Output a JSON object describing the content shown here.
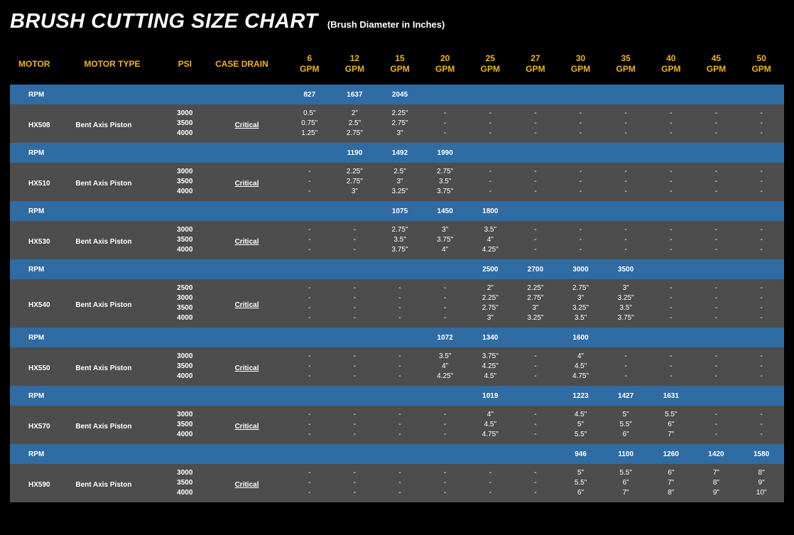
{
  "title": "BRUSH CUTTING SIZE CHART",
  "subtitle": "(Brush Diameter in Inches)",
  "columns": {
    "motor": "MOTOR",
    "motor_type": "MOTOR TYPE",
    "psi": "PSI",
    "case_drain": "CASE DRAIN",
    "gpm": [
      "6",
      "12",
      "15",
      "20",
      "25",
      "27",
      "30",
      "35",
      "40",
      "45",
      "50"
    ],
    "gpm_suffix": "GPM"
  },
  "rpm_label": "RPM",
  "colors": {
    "page_bg": "#000000",
    "header_text": "#f2b416",
    "rpm_row_bg": "#2f6ca4",
    "data_row_bg": "#4d4d4d",
    "text": "#ffffff"
  },
  "motors": [
    {
      "id": "HX508",
      "type": "Bent Axis Piston",
      "drain": "Critical",
      "rpm": [
        "827",
        "1637",
        "2045",
        "",
        "",
        "",
        "",
        "",
        "",
        "",
        ""
      ],
      "psi": [
        "3000",
        "3500",
        "4000"
      ],
      "data": [
        [
          "0.5\"",
          "2\"",
          "2.25\"",
          "-",
          "-",
          "-",
          "-",
          "-",
          "-",
          "-",
          "-"
        ],
        [
          "0.75\"",
          "2.5\"",
          "2.75\"",
          "-",
          "-",
          "-",
          "-",
          "-",
          "-",
          "-",
          "-"
        ],
        [
          "1.25\"",
          "2.75\"",
          "3\"",
          "-",
          "-",
          "-",
          "-",
          "-",
          "-",
          "-",
          "-"
        ]
      ]
    },
    {
      "id": "HX510",
      "type": "Bent Axis Piston",
      "drain": "Critical",
      "rpm": [
        "",
        "1190",
        "1492",
        "1990",
        "",
        "",
        "",
        "",
        "",
        "",
        ""
      ],
      "psi": [
        "3000",
        "3500",
        "4000"
      ],
      "data": [
        [
          "-",
          "2.25\"",
          "2.5\"",
          "2.75\"",
          "-",
          "-",
          "-",
          "-",
          "-",
          "-",
          "-"
        ],
        [
          "-",
          "2.75\"",
          "3\"",
          "3.5\"",
          "-",
          "-",
          "-",
          "-",
          "-",
          "-",
          "-"
        ],
        [
          "-",
          "3\"",
          "3.25\"",
          "3.75\"",
          "-",
          "-",
          "-",
          "-",
          "-",
          "-",
          "-"
        ]
      ]
    },
    {
      "id": "HX530",
      "type": "Bent Axis Piston",
      "drain": "Critical",
      "rpm": [
        "",
        "",
        "1075",
        "1450",
        "1800",
        "",
        "",
        "",
        "",
        "",
        ""
      ],
      "psi": [
        "3000",
        "3500",
        "4000"
      ],
      "data": [
        [
          "-",
          "-",
          "2.75\"",
          "3\"",
          "3.5\"",
          "-",
          "-",
          "-",
          "-",
          "-",
          "-"
        ],
        [
          "-",
          "-",
          "3.5\"",
          "3.75\"",
          "4\"",
          "-",
          "-",
          "-",
          "-",
          "-",
          "-"
        ],
        [
          "-",
          "-",
          "3.75\"",
          "4\"",
          "4.25\"",
          "-",
          "-",
          "-",
          "-",
          "-",
          "-"
        ]
      ]
    },
    {
      "id": "HX540",
      "type": "Bent Axis Piston",
      "drain": "Critical",
      "rpm": [
        "",
        "",
        "",
        "",
        "2500",
        "2700",
        "3000",
        "3500",
        "",
        "",
        ""
      ],
      "psi": [
        "2500",
        "3000",
        "3500",
        "4000"
      ],
      "data": [
        [
          "-",
          "-",
          "-",
          "-",
          "2\"",
          "2.25\"",
          "2.75\"",
          "3\"",
          "-",
          "-",
          "-"
        ],
        [
          "-",
          "-",
          "-",
          "-",
          "2.25\"",
          "2.75\"",
          "3\"",
          "3.25\"",
          "-",
          "-",
          "-"
        ],
        [
          "-",
          "-",
          "-",
          "-",
          "2.75\"",
          "3\"",
          "3.25\"",
          "3.5\"",
          "-",
          "-",
          "-"
        ],
        [
          "-",
          "-",
          "-",
          "-",
          "3\"",
          "3.25\"",
          "3.5\"",
          "3.75\"",
          "-",
          "-",
          "-"
        ]
      ]
    },
    {
      "id": "HX550",
      "type": "Bent Axis Piston",
      "drain": "Critical",
      "rpm": [
        "",
        "",
        "",
        "1072",
        "1340",
        "",
        "1600",
        "",
        "",
        "",
        ""
      ],
      "psi": [
        "3000",
        "3500",
        "4000"
      ],
      "data": [
        [
          "-",
          "-",
          "-",
          "3.5\"",
          "3.75\"",
          "-",
          "4\"",
          "-",
          "-",
          "-",
          "-"
        ],
        [
          "-",
          "-",
          "-",
          "4\"",
          "4.25\"",
          "-",
          "4.5\"",
          "-",
          "-",
          "-",
          "-"
        ],
        [
          "-",
          "-",
          "-",
          "4.25\"",
          "4.5\"",
          "-",
          "4.75\"",
          "-",
          "-",
          "-",
          "-"
        ]
      ]
    },
    {
      "id": "HX570",
      "type": "Bent Axis Piston",
      "drain": "Critical",
      "rpm": [
        "",
        "",
        "",
        "",
        "1019",
        "",
        "1223",
        "1427",
        "1631",
        "",
        ""
      ],
      "psi": [
        "3000",
        "3500",
        "4000"
      ],
      "data": [
        [
          "-",
          "-",
          "-",
          "-",
          "4\"",
          "-",
          "4.5\"",
          "5\"",
          "5.5\"",
          "-",
          "-"
        ],
        [
          "-",
          "-",
          "-",
          "-",
          "4.5\"",
          "-",
          "5\"",
          "5.5\"",
          "6\"",
          "-",
          "-"
        ],
        [
          "-",
          "-",
          "-",
          "-",
          "4.75\"",
          "-",
          "5.5\"",
          "6\"",
          "7\"",
          "-",
          "-"
        ]
      ]
    },
    {
      "id": "HX590",
      "type": "Bent Axis Piston",
      "drain": "Critical",
      "rpm": [
        "",
        "",
        "",
        "",
        "",
        "",
        "946",
        "1100",
        "1260",
        "1420",
        "1580"
      ],
      "psi": [
        "3000",
        "3500",
        "4000"
      ],
      "data": [
        [
          "-",
          "-",
          "-",
          "-",
          "-",
          "-",
          "5\"",
          "5.5\"",
          "6\"",
          "7\"",
          "8\""
        ],
        [
          "-",
          "-",
          "-",
          "-",
          "-",
          "-",
          "5.5\"",
          "6\"",
          "7\"",
          "8\"",
          "9\""
        ],
        [
          "-",
          "-",
          "-",
          "-",
          "-",
          "-",
          "6\"",
          "7\"",
          "8\"",
          "9\"",
          "10\""
        ]
      ]
    }
  ]
}
